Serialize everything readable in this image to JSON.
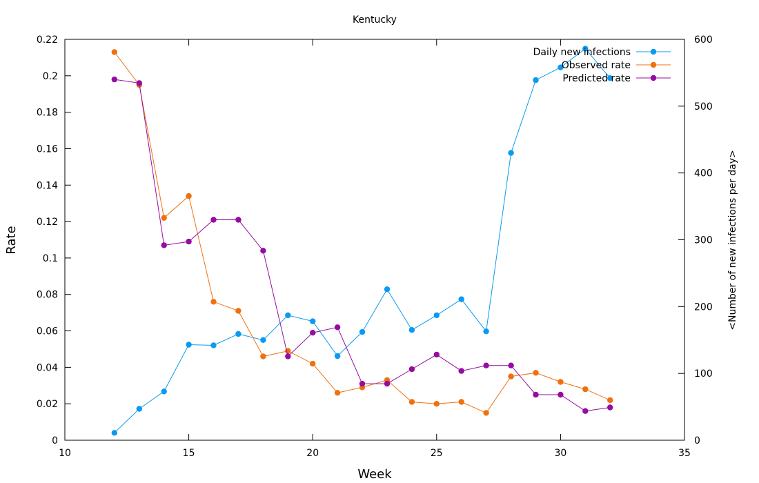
{
  "chart_data": {
    "type": "line",
    "title": "Kentucky",
    "xlabel": "Week",
    "ylabel": "Rate",
    "y2label": "<Number of new infections per day>",
    "xlim": [
      10,
      35
    ],
    "ylim": [
      0,
      0.22
    ],
    "y2lim": [
      0,
      600
    ],
    "x_ticks": [
      10,
      15,
      20,
      25,
      30,
      35
    ],
    "y_ticks": [
      0,
      0.02,
      0.04,
      0.06,
      0.08,
      0.1,
      0.12,
      0.14,
      0.16,
      0.18,
      0.2,
      0.22
    ],
    "y_tick_labels": [
      "0",
      "0.02",
      "0.04",
      "0.06",
      "0.08",
      "0.1",
      "0.12",
      "0.14",
      "0.16",
      "0.18",
      "0.2",
      "0.22"
    ],
    "y2_ticks": [
      0,
      100,
      200,
      300,
      400,
      500,
      600
    ],
    "grid": false,
    "legend_position": "top-right",
    "series": [
      {
        "name": "Daily new infections",
        "axis": "y2",
        "color": "#0a9af0",
        "x": [
          12,
          13,
          14,
          15,
          16,
          17,
          18,
          19,
          20,
          21,
          22,
          23,
          24,
          25,
          26,
          27,
          28,
          29,
          30,
          31,
          32
        ],
        "y": [
          11,
          47,
          73,
          143,
          142,
          159,
          150,
          187,
          178,
          126,
          162,
          226,
          165,
          187,
          211,
          163,
          430,
          539,
          558,
          586,
          542
        ]
      },
      {
        "name": "Observed rate",
        "axis": "y",
        "color": "#f0700f",
        "x": [
          12,
          13,
          14,
          15,
          16,
          17,
          18,
          19,
          20,
          21,
          22,
          23,
          24,
          25,
          26,
          27,
          28,
          29,
          30,
          31,
          32
        ],
        "y": [
          0.213,
          0.195,
          0.122,
          0.134,
          0.076,
          0.071,
          0.046,
          0.049,
          0.042,
          0.026,
          0.029,
          0.033,
          0.021,
          0.02,
          0.021,
          0.015,
          0.035,
          0.037,
          0.032,
          0.028,
          0.022
        ]
      },
      {
        "name": "Predicted rate",
        "axis": "y",
        "color": "#960ca0",
        "x": [
          12,
          13,
          14,
          15,
          16,
          17,
          18,
          19,
          20,
          21,
          22,
          23,
          24,
          25,
          26,
          27,
          28,
          29,
          30,
          31,
          32
        ],
        "y": [
          0.198,
          0.196,
          0.107,
          0.109,
          0.121,
          0.121,
          0.104,
          0.046,
          0.059,
          0.062,
          0.031,
          0.031,
          0.039,
          0.047,
          0.038,
          0.041,
          0.041,
          0.025,
          0.025,
          0.016,
          0.018
        ]
      }
    ]
  }
}
